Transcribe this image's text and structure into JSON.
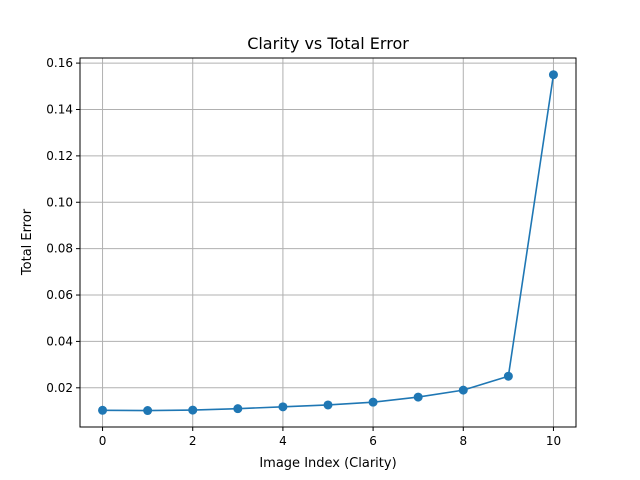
{
  "chart_data": {
    "type": "line",
    "title": "Clarity vs Total Error",
    "xlabel": "Image Index (Clarity)",
    "ylabel": "Total Error",
    "x": [
      0,
      1,
      2,
      3,
      4,
      5,
      6,
      7,
      8,
      9,
      10
    ],
    "series": [
      {
        "values": [
          0.0103,
          0.0102,
          0.0104,
          0.011,
          0.0118,
          0.0126,
          0.0138,
          0.016,
          0.019,
          0.025,
          0.155
        ],
        "color": "#1f77b4",
        "marker": "circle"
      }
    ],
    "xlim": [
      -0.5,
      10.5
    ],
    "ylim": [
      0.0031,
      0.1622
    ],
    "xticks": [
      0,
      2,
      4,
      6,
      8,
      10
    ],
    "xtick_labels": [
      "0",
      "2",
      "4",
      "6",
      "8",
      "10"
    ],
    "yticks": [
      0.02,
      0.04,
      0.06,
      0.08,
      0.1,
      0.12,
      0.14,
      0.16
    ],
    "ytick_labels": [
      "0.02",
      "0.04",
      "0.06",
      "0.08",
      "0.10",
      "0.12",
      "0.14",
      "0.16"
    ],
    "grid": true
  }
}
